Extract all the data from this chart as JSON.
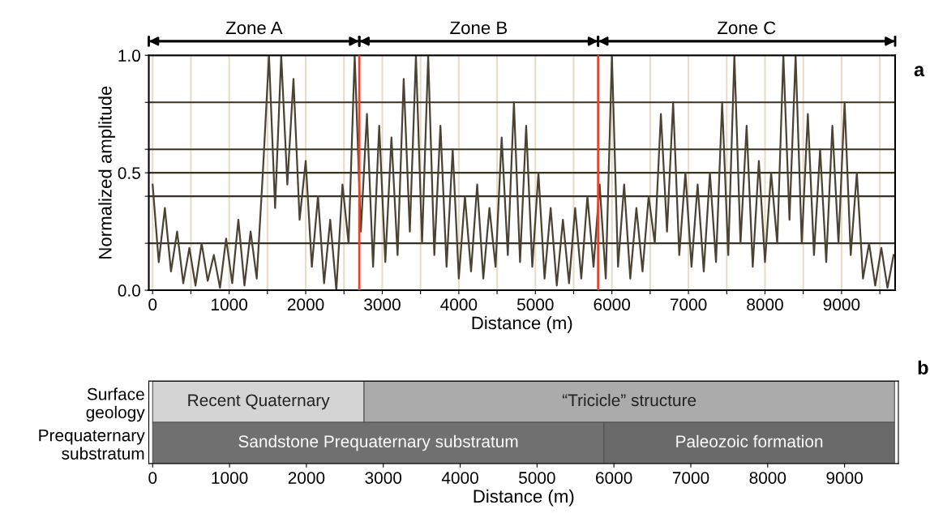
{
  "chart_data": [
    {
      "type": "line",
      "ylabel": "Normalized amplitude",
      "xlabel": "Distance (m)",
      "xlim": [
        -50,
        9700
      ],
      "ylim": [
        0,
        1
      ],
      "xticks": [
        0,
        {
          "value": 500,
          "label": null
        },
        1000,
        {
          "value": 1500,
          "label": null
        },
        2000,
        {
          "value": 2500,
          "label": null
        },
        3000,
        {
          "value": 3500,
          "label": null
        },
        4000,
        {
          "value": 4500,
          "label": null
        },
        5000,
        {
          "value": 5500,
          "label": null
        },
        6000,
        {
          "value": 6500,
          "label": null
        },
        7000,
        {
          "value": 7500,
          "label": null
        },
        8000,
        {
          "value": 8500,
          "label": null
        },
        9000,
        {
          "value": 9500,
          "label": null
        }
      ],
      "yticks": [
        {
          "value": 0,
          "label": "0.0"
        },
        {
          "value": 0.2,
          "label": null
        },
        {
          "value": 0.4,
          "label": null
        },
        {
          "value": 0.5,
          "label": "0.5"
        },
        {
          "value": 0.6,
          "label": null
        },
        {
          "value": 0.8,
          "label": null
        },
        {
          "value": 1,
          "label": "1.0"
        }
      ],
      "grid": true,
      "series": [
        {
          "color": "#4a4232",
          "x": [
            0,
            80,
            160,
            240,
            320,
            400,
            480,
            560,
            640,
            720,
            800,
            880,
            960,
            1040,
            1120,
            1200,
            1280,
            1360,
            1440,
            1520,
            1600,
            1680,
            1760,
            1840,
            1920,
            2000,
            2080,
            2160,
            2240,
            2320,
            2400,
            2480,
            2560,
            2640,
            2720,
            2800,
            2880,
            2960,
            3040,
            3120,
            3200,
            3280,
            3360,
            3440,
            3520,
            3600,
            3680,
            3760,
            3840,
            3920,
            4000,
            4080,
            4160,
            4240,
            4320,
            4400,
            4480,
            4560,
            4640,
            4720,
            4800,
            4880,
            4960,
            5040,
            5120,
            5200,
            5280,
            5360,
            5440,
            5520,
            5600,
            5680,
            5760,
            5840,
            5920,
            6000,
            6080,
            6160,
            6240,
            6320,
            6400,
            6480,
            6560,
            6640,
            6720,
            6800,
            6880,
            6960,
            7040,
            7120,
            7200,
            7280,
            7360,
            7440,
            7520,
            7600,
            7680,
            7760,
            7840,
            7920,
            8000,
            8080,
            8160,
            8240,
            8320,
            8400,
            8480,
            8560,
            8640,
            8720,
            8800,
            8880,
            8960,
            9040,
            9120,
            9200,
            9280,
            9360,
            9440,
            9520,
            9600,
            9680
          ],
          "values": [
            0.45,
            0.12,
            0.35,
            0.08,
            0.25,
            0.03,
            0.18,
            0.02,
            0.2,
            0.04,
            0.15,
            0.01,
            0.22,
            0.03,
            0.3,
            0.02,
            0.25,
            0.05,
            0.5,
            1.0,
            0.35,
            1.0,
            0.45,
            0.9,
            0.3,
            0.55,
            0.1,
            0.4,
            0.03,
            0.3,
            0.0,
            0.45,
            0.2,
            1.0,
            0.25,
            0.75,
            0.1,
            0.7,
            0.12,
            0.65,
            0.15,
            0.9,
            0.25,
            1.0,
            0.2,
            1.0,
            0.15,
            0.7,
            0.1,
            0.6,
            0.05,
            0.4,
            0.08,
            0.45,
            0.05,
            0.35,
            0.1,
            0.65,
            0.15,
            0.8,
            0.12,
            0.7,
            0.1,
            0.5,
            0.05,
            0.35,
            0.02,
            0.3,
            0.03,
            0.35,
            0.05,
            0.4,
            0.1,
            0.45,
            0.05,
            1.0,
            0.1,
            0.45,
            0.05,
            0.35,
            0.08,
            0.4,
            0.2,
            0.75,
            0.25,
            0.8,
            0.15,
            0.5,
            0.1,
            0.45,
            0.08,
            0.5,
            0.12,
            0.8,
            0.15,
            1.0,
            0.2,
            0.7,
            0.1,
            0.55,
            0.12,
            0.5,
            0.2,
            1.0,
            0.3,
            1.0,
            0.2,
            0.75,
            0.15,
            0.6,
            0.12,
            0.7,
            0.2,
            0.8,
            0.15,
            0.5,
            0.05,
            0.2,
            0.02,
            0.18,
            0.01,
            0.15
          ]
        }
      ],
      "ref_lines": [
        {
          "axis": "x",
          "value": 2700,
          "color": "#e0472f"
        },
        {
          "axis": "x",
          "value": 5820,
          "color": "#e0472f"
        }
      ],
      "annotations": [
        "Zone A",
        "Zone B",
        "Zone C",
        "a"
      ]
    },
    {
      "type": "bar",
      "orientation": "horizontal",
      "stacked": true,
      "xlabel": "Distance (m)",
      "categories": [
        "Surface\ngeology",
        "Prequaternary\nsubstratum"
      ],
      "xlim": [
        -50,
        9700
      ],
      "xticks": [
        0,
        1000,
        2000,
        3000,
        4000,
        5000,
        6000,
        7000,
        8000,
        9000
      ],
      "series": [
        {
          "name": "Recent Quaternary",
          "color": "#d4d4d4",
          "values": [
            2750,
            null
          ]
        },
        {
          "name": "“Tricicle” structure",
          "color": "#ababab",
          "values": [
            6900,
            null
          ]
        },
        {
          "name": "Sandstone Prequaternary substratum",
          "color": "#707070",
          "values": [
            null,
            5870
          ]
        },
        {
          "name": "Paleozoic formation",
          "color": "#6a6a6a",
          "values": [
            null,
            3780
          ]
        }
      ],
      "annotations": [
        "b"
      ]
    }
  ]
}
